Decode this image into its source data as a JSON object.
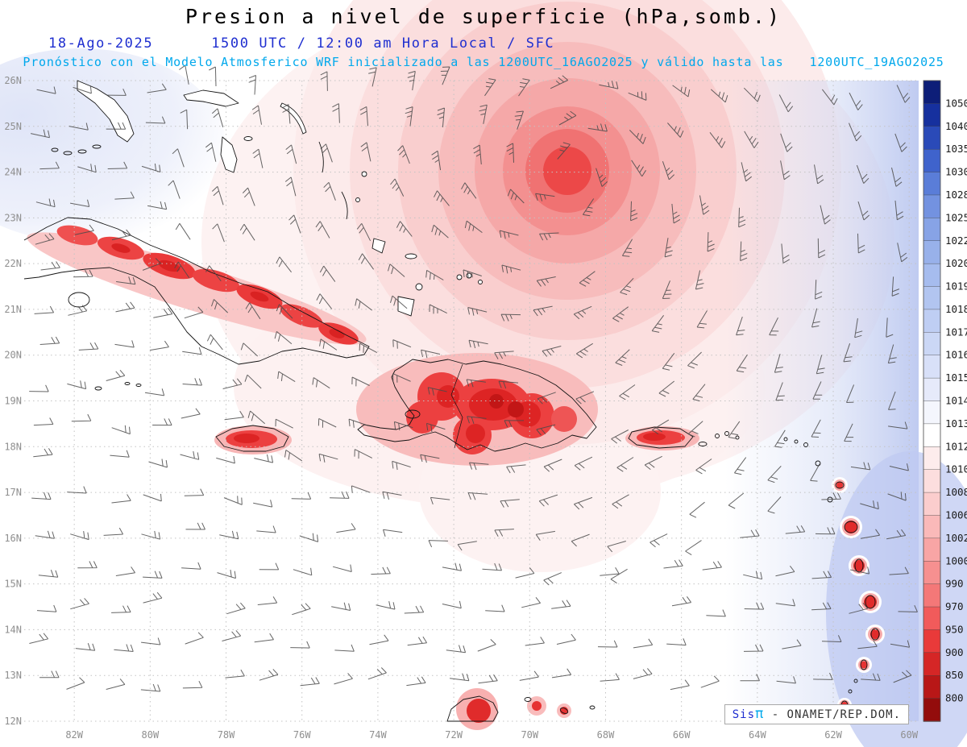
{
  "header": {
    "title": "Presion a nivel de superficie (hPa,somb.)",
    "date": "18-Ago-2025",
    "time_info": "1500 UTC / 12:00 am Hora Local / SFC",
    "forecast_prefix": "Pronóstico con el Modelo Atmosferico WRF inicializado a las",
    "forecast_init": "1200UTC_16AGO2025",
    "forecast_middle": "y válido hasta las",
    "forecast_valid": "1200UTC_19AGO2025"
  },
  "credit": {
    "sis": "Sis",
    "pi": "π",
    "rest": "- ONAMET/REP.DOM."
  },
  "chart_data": {
    "type": "heatmap",
    "title": "Presion a nivel de superficie (hPa,somb.)",
    "variable": "surface pressure",
    "units": "hPa",
    "model": "WRF",
    "grid": "dotted",
    "legend_position": "right",
    "lat_ticks": [
      "26N",
      "25N",
      "24N",
      "23N",
      "22N",
      "21N",
      "20N",
      "19N",
      "18N",
      "17N",
      "16N",
      "15N",
      "14N",
      "13N",
      "12N"
    ],
    "lon_ticks": [
      "82W",
      "80W",
      "78W",
      "76W",
      "74W",
      "72W",
      "70W",
      "68W",
      "66W",
      "64W",
      "62W",
      "60W"
    ],
    "lat_range_deg": [
      12,
      26
    ],
    "lon_range_deg": [
      -83.3,
      -59.7
    ],
    "colorbar_levels": [
      1050,
      1040,
      1035,
      1030,
      1028,
      1025,
      1022,
      1020,
      1019,
      1018,
      1017,
      1016,
      1015,
      1014,
      1013,
      1012,
      1010,
      1008,
      1006,
      1002,
      1000,
      990,
      970,
      950,
      900,
      850,
      800
    ],
    "colorbar_colors": [
      "#0d1e78",
      "#16309e",
      "#2a4ab8",
      "#3f63cc",
      "#5a7dd8",
      "#7392e0",
      "#87a3e6",
      "#98b1ea",
      "#a6bcee",
      "#b2c5f0",
      "#bfcef3",
      "#cbd7f5",
      "#d8e0f8",
      "#e6eafa",
      "#f4f6fd",
      "#ffffff",
      "#fdecec",
      "#fcdede",
      "#fbcdcd",
      "#fab9b9",
      "#f8a5a5",
      "#f69090",
      "#f47878",
      "#f15b5b",
      "#e93a3a",
      "#d52626",
      "#b81717",
      "#930c0c"
    ],
    "cyclone_center": {
      "lon_deg": -69,
      "lat_deg": 24
    },
    "shaded_low_regions": [
      "tropical cyclone near 24N 69W",
      "Cuba",
      "Jamaica",
      "Hispaniola",
      "Puerto Rico",
      "Lesser Antilles",
      "Guajira peninsula"
    ],
    "colors": {
      "subtitle_blue": "#1f2fd0",
      "forecast_cyan": "#00a8ec",
      "axis_label_gray": "#8f8f8f",
      "low_red": "#e02b2b",
      "high_blue": "#c9d3f2"
    }
  }
}
